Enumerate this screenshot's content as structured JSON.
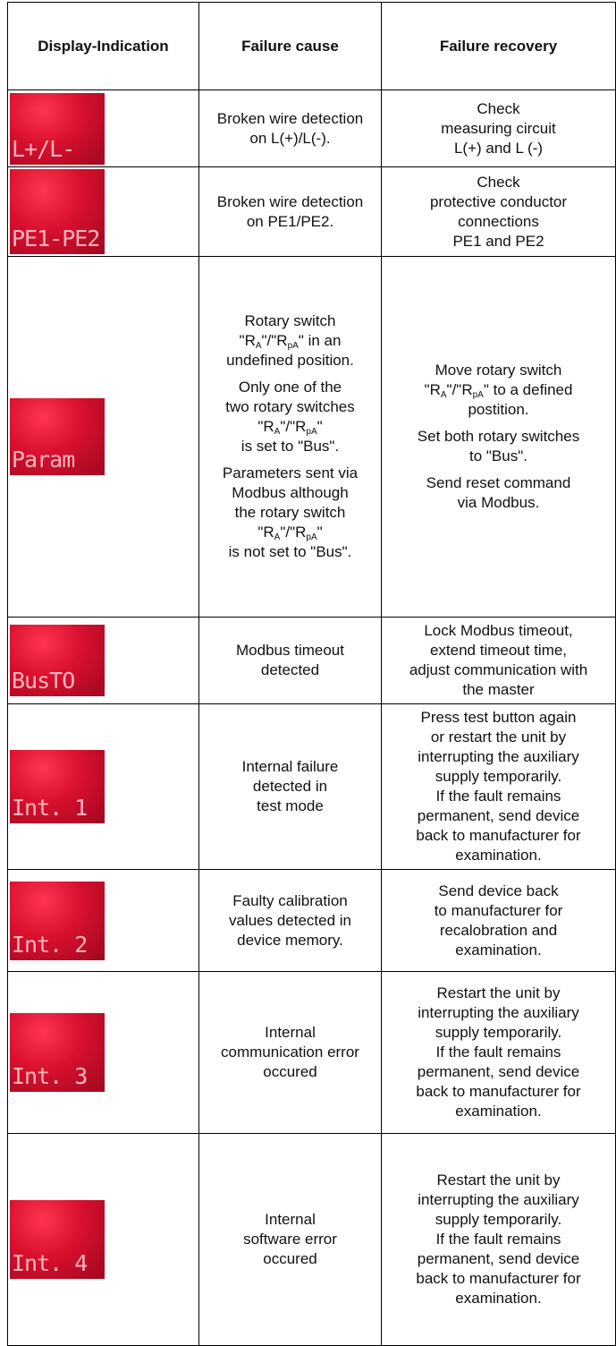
{
  "header": [
    "Display-Indication",
    "Failure cause",
    "Failure recovery"
  ],
  "rows": [
    {
      "display": "L+/L-",
      "cause": [
        [
          "Broken wire detection",
          "on L(+)/L(-)."
        ]
      ],
      "recovery": [
        [
          "Check",
          "measuring circuit",
          "L(+) and L (-)"
        ]
      ]
    },
    {
      "display": "PE1-PE2",
      "cause": [
        [
          "Broken wire detection",
          "on PE1/PE2."
        ]
      ],
      "recovery": [
        [
          "Check",
          "protective conductor",
          "connections",
          "PE1 and PE2"
        ]
      ]
    },
    {
      "display": "Param",
      "cause": [
        [
          "Rotary switch",
          [
            "\"R",
            {
              "sub": "A"
            },
            "\"/\"R",
            {
              "sub": "pA"
            },
            "\" in an"
          ],
          "undefined position."
        ],
        [
          "Only one of the",
          "two rotary switches",
          [
            "\"R",
            {
              "sub": "A"
            },
            "\"/\"R",
            {
              "sub": "pA"
            },
            "\""
          ],
          "is set to \"Bus\"."
        ],
        [
          "Parameters sent via",
          "Modbus although",
          "the rotary switch",
          [
            "\"R",
            {
              "sub": "A"
            },
            "\"/\"R",
            {
              "sub": "pA"
            },
            "\""
          ],
          "is not set to \"Bus\"."
        ]
      ],
      "recovery": [
        [
          "Move rotary switch",
          [
            "\"R",
            {
              "sub": "A"
            },
            "\"/\"R",
            {
              "sub": "pA"
            },
            "\" to a defined"
          ],
          "postition."
        ],
        [
          "Set both rotary switches",
          "to \"Bus\"."
        ],
        [
          "Send reset command",
          "via Modbus."
        ]
      ]
    },
    {
      "display": "BusTO",
      "cause": [
        [
          "Modbus timeout",
          "detected"
        ]
      ],
      "recovery": [
        [
          "Lock Modbus timeout,",
          "extend timeout time,",
          "adjust communication with",
          "the master"
        ]
      ]
    },
    {
      "display": "Int. 1",
      "cause": [
        [
          "Internal failure",
          "detected in",
          "test mode"
        ]
      ],
      "recovery": [
        [
          "Press test button again",
          "or restart the unit by",
          "interrupting the auxiliary",
          "supply temporarily.",
          "If the fault remains",
          "permanent, send device",
          "back to manufacturer for",
          "examination."
        ]
      ]
    },
    {
      "display": "Int. 2",
      "cause": [
        [
          "Faulty calibration",
          "values detected in",
          "device memory."
        ]
      ],
      "recovery": [
        [
          "Send device back",
          "to manufacturer for",
          "recalobration and",
          "examination."
        ]
      ]
    },
    {
      "display": "Int. 3",
      "cause": [
        [
          "Internal",
          "communication error",
          "occured"
        ]
      ],
      "recovery": [
        [
          "Restart the unit by",
          "interrupting the auxiliary",
          "supply temporarily.",
          "If the fault remains",
          "permanent, send device",
          "back to manufacturer for",
          "examination."
        ]
      ]
    },
    {
      "display": "Int. 4",
      "cause": [
        [
          "Internal",
          "software error",
          "occured"
        ]
      ],
      "recovery": [
        [
          "Restart the unit by",
          "interrupting the auxiliary",
          "supply temporarily.",
          "If the fault remains",
          "permanent, send device",
          "back to manufacturer for",
          "examination."
        ]
      ]
    }
  ]
}
